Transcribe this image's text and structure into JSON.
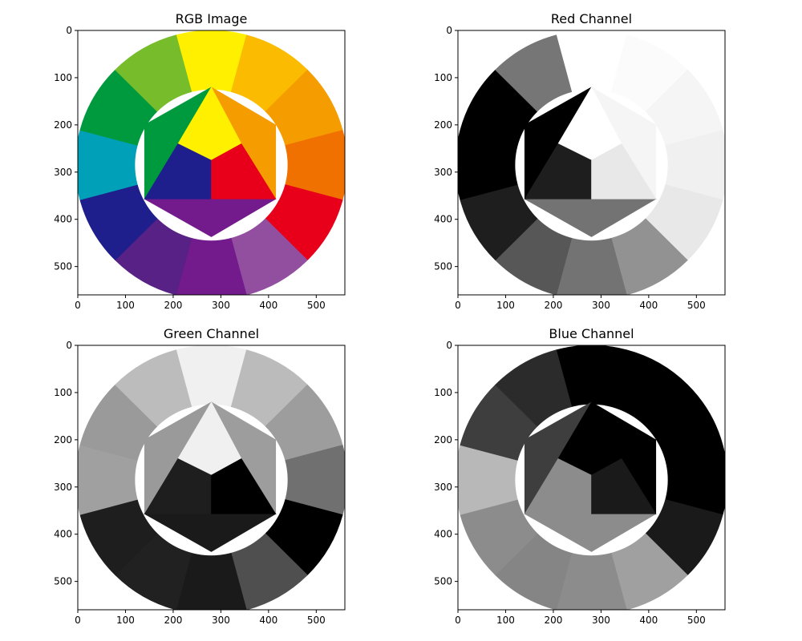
{
  "chart_data": [
    {
      "type": "image",
      "title": "RGB Image",
      "channel": "rgb",
      "xlim": [
        0,
        560
      ],
      "ylim": [
        560,
        0
      ],
      "xticks": [
        0,
        100,
        200,
        300,
        400,
        500
      ],
      "yticks": [
        0,
        100,
        200,
        300,
        400,
        500
      ]
    },
    {
      "type": "image",
      "title": "Red Channel",
      "channel": "r",
      "colormap": "gray",
      "xlim": [
        0,
        560
      ],
      "ylim": [
        560,
        0
      ],
      "xticks": [
        0,
        100,
        200,
        300,
        400,
        500
      ],
      "yticks": [
        0,
        100,
        200,
        300,
        400,
        500
      ]
    },
    {
      "type": "image",
      "title": "Green Channel",
      "channel": "g",
      "colormap": "gray",
      "xlim": [
        0,
        560
      ],
      "ylim": [
        560,
        0
      ],
      "xticks": [
        0,
        100,
        200,
        300,
        400,
        500
      ],
      "yticks": [
        0,
        100,
        200,
        300,
        400,
        500
      ]
    },
    {
      "type": "image",
      "title": "Blue Channel",
      "channel": "b",
      "colormap": "gray",
      "xlim": [
        0,
        560
      ],
      "ylim": [
        560,
        0
      ],
      "xticks": [
        0,
        100,
        200,
        300,
        400,
        500
      ],
      "yticks": [
        0,
        100,
        200,
        300,
        400,
        500
      ]
    }
  ],
  "wheel": {
    "outer_segment_colors": [
      "#FFF000",
      "#FBBB00",
      "#F59D00",
      "#F07000",
      "#E8001A",
      "#924FA0",
      "#731A8C",
      "#572185",
      "#1E1E8C",
      "#00A0B8",
      "#009A3E",
      "#76BC2B"
    ],
    "inner_triangle_colors": {
      "top": "#FFF000",
      "bottom_left": "#1E1E8C",
      "bottom_right": "#E8001A"
    },
    "inner_outer_triangle_colors": {
      "left": "#009A3E",
      "right": "#F59D00",
      "bottom": "#731A8C"
    },
    "background": "#ffffff"
  }
}
